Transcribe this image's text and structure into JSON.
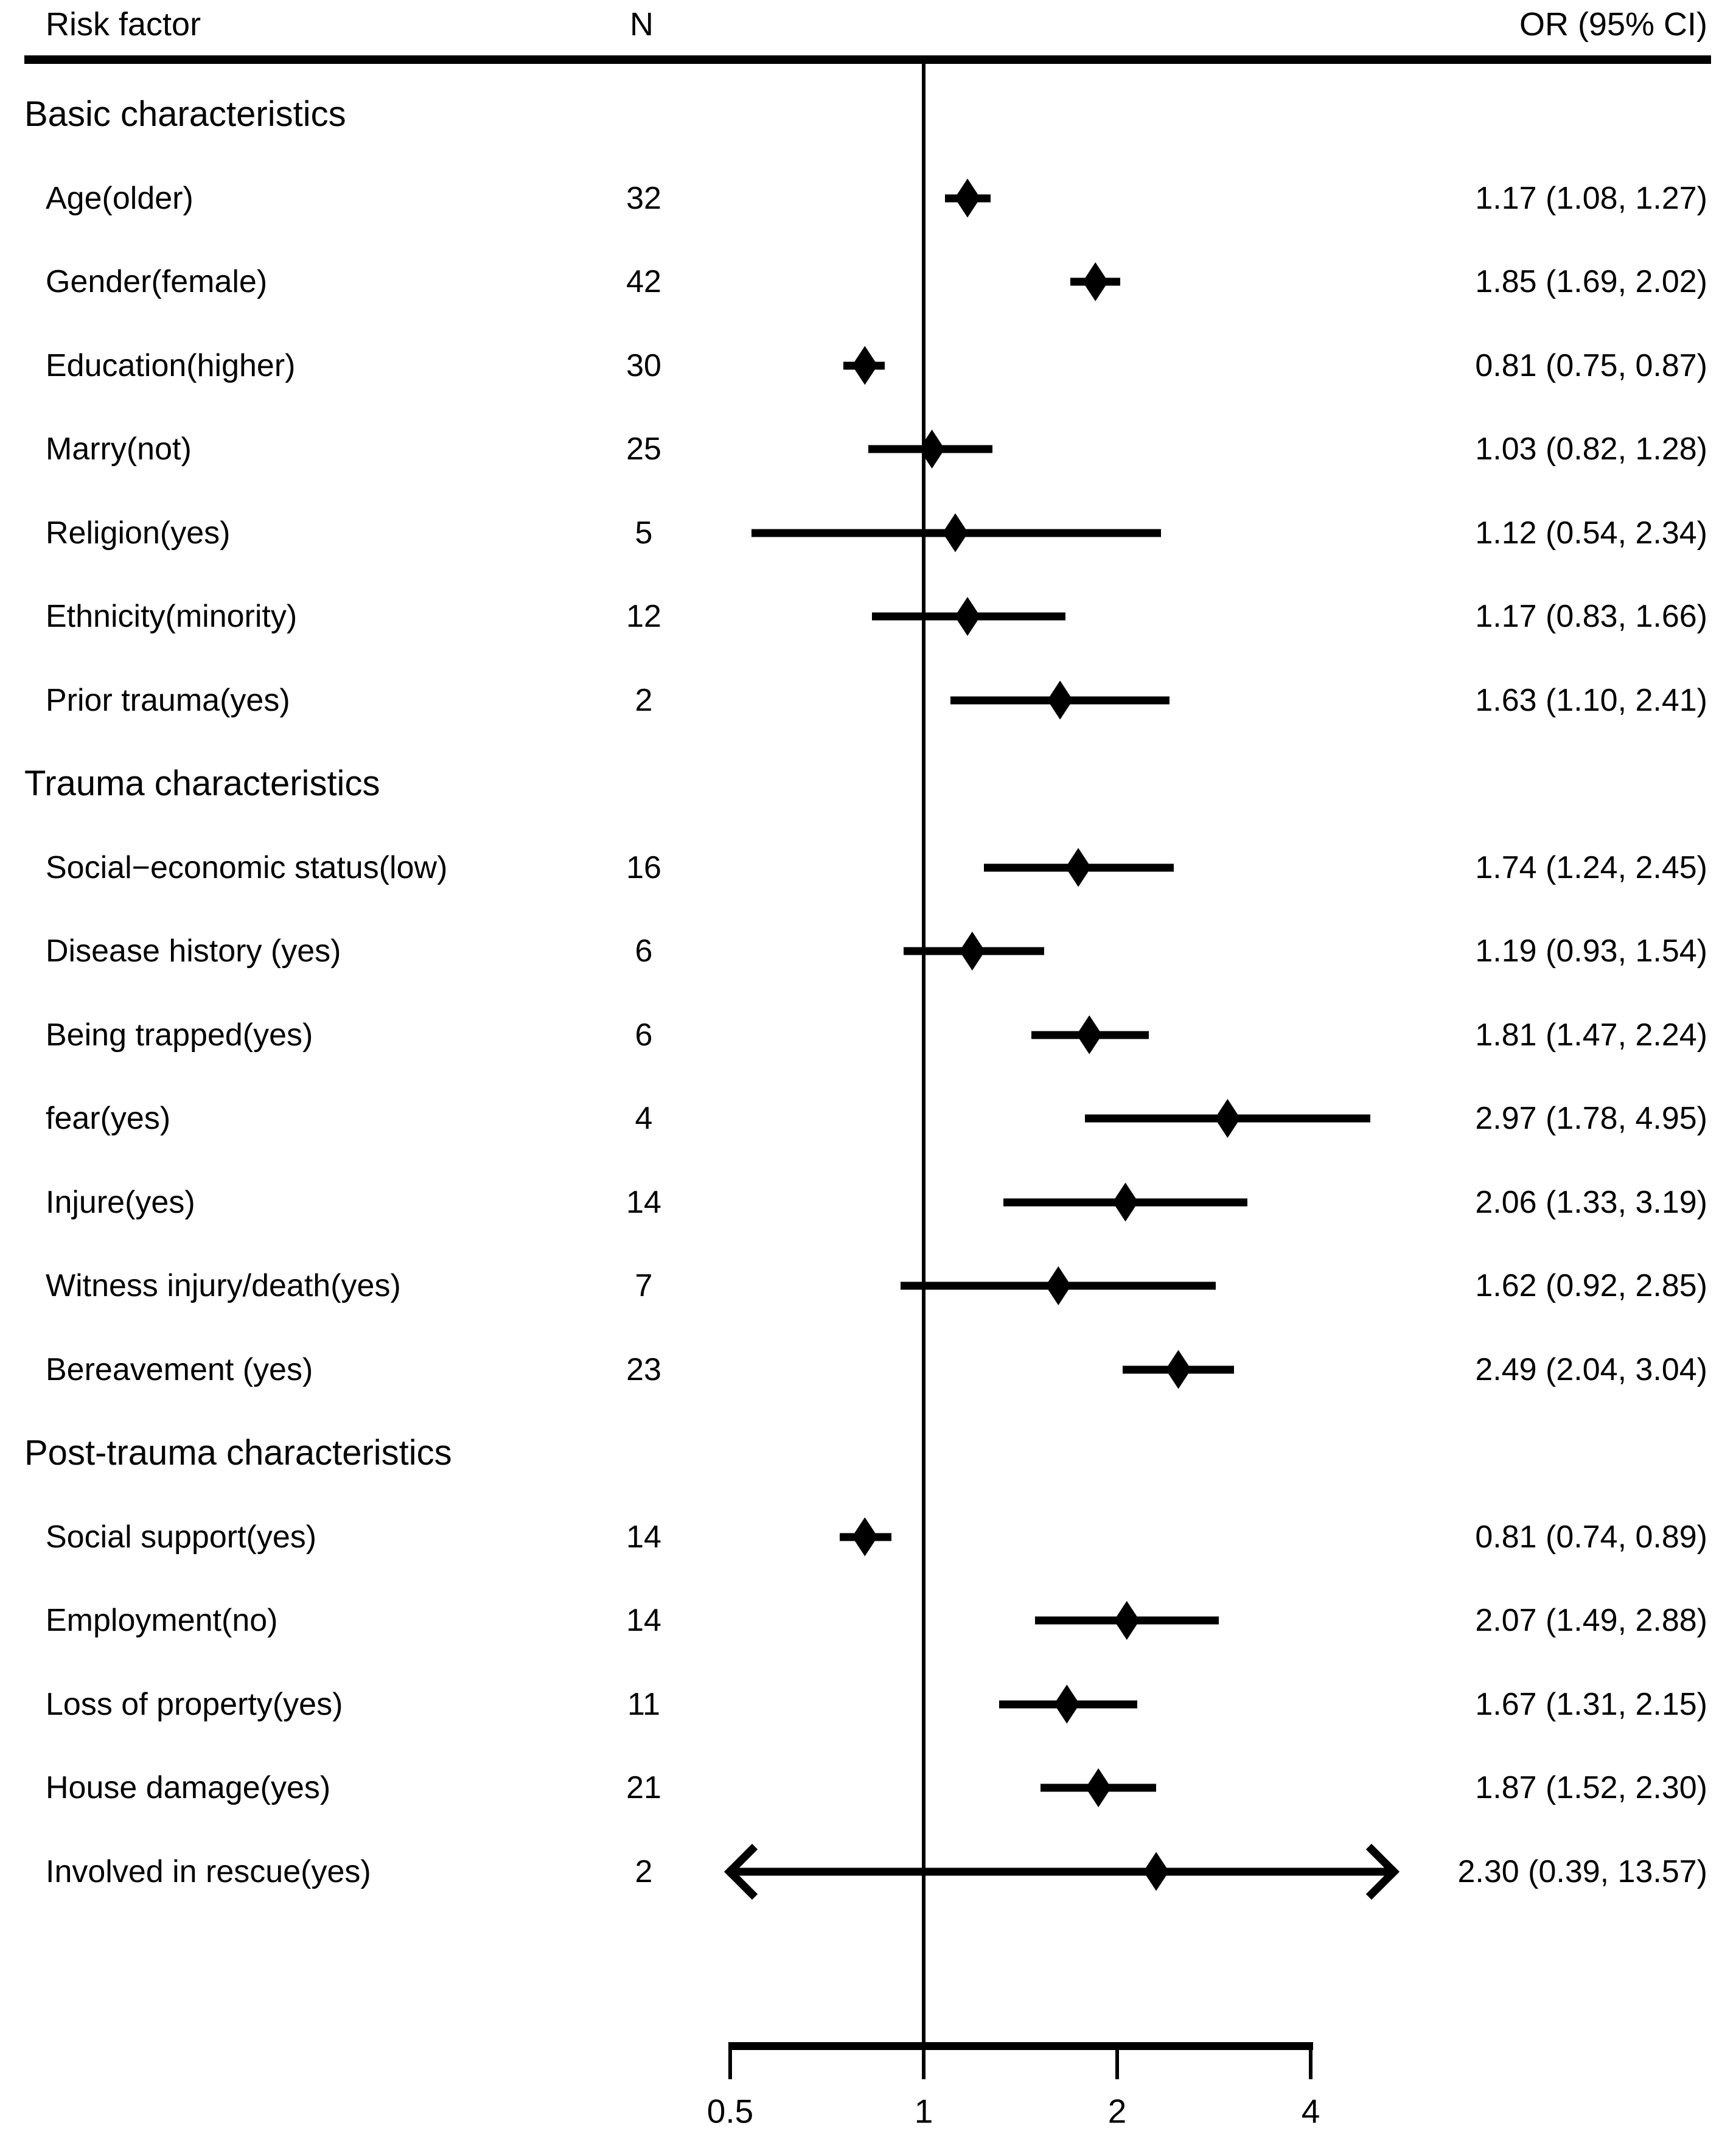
{
  "header": {
    "risk_factor": "Risk factor",
    "n": "N",
    "or_ci": "OR (95% CI)"
  },
  "axis": {
    "tick_labels": [
      "0.5",
      "1",
      "2",
      "4"
    ],
    "tick_values": [
      0.5,
      1,
      2,
      4
    ]
  },
  "chart_data": {
    "type": "scatter",
    "title": "",
    "xlabel": "",
    "x_scale": "log2",
    "x_ticks": [
      0.5,
      1,
      2,
      4
    ],
    "reference_line_x": 1,
    "marker": "diamond",
    "columns": [
      "Risk factor",
      "N",
      "OR (95% CI)"
    ],
    "sections": [
      {
        "title": "Basic characteristics",
        "rows": [
          {
            "label": "Age(older)",
            "n": "32",
            "or": 1.17,
            "ci_low": 1.08,
            "ci_high": 1.27,
            "or_text": "1.17 (1.08, 1.27)"
          },
          {
            "label": "Gender(female)",
            "n": "42",
            "or": 1.85,
            "ci_low": 1.69,
            "ci_high": 2.02,
            "or_text": "1.85 (1.69, 2.02)"
          },
          {
            "label": "Education(higher)",
            "n": "30",
            "or": 0.81,
            "ci_low": 0.75,
            "ci_high": 0.87,
            "or_text": "0.81 (0.75, 0.87)"
          },
          {
            "label": "Marry(not)",
            "n": "25",
            "or": 1.03,
            "ci_low": 0.82,
            "ci_high": 1.28,
            "or_text": "1.03 (0.82, 1.28)"
          },
          {
            "label": "Religion(yes)",
            "n": "5",
            "or": 1.12,
            "ci_low": 0.54,
            "ci_high": 2.34,
            "or_text": "1.12 (0.54, 2.34)"
          },
          {
            "label": "Ethnicity(minority)",
            "n": "12",
            "or": 1.17,
            "ci_low": 0.83,
            "ci_high": 1.66,
            "or_text": "1.17 (0.83, 1.66)"
          },
          {
            "label": "Prior trauma(yes)",
            "n": "2",
            "or": 1.63,
            "ci_low": 1.1,
            "ci_high": 2.41,
            "or_text": "1.63 (1.10, 2.41)"
          }
        ]
      },
      {
        "title": "Trauma characteristics",
        "rows": [
          {
            "label": "Social−economic status(low)",
            "n": "16",
            "or": 1.74,
            "ci_low": 1.24,
            "ci_high": 2.45,
            "or_text": "1.74 (1.24, 2.45)"
          },
          {
            "label": "Disease history (yes)",
            "n": "6",
            "or": 1.19,
            "ci_low": 0.93,
            "ci_high": 1.54,
            "or_text": "1.19 (0.93, 1.54)"
          },
          {
            "label": "Being trapped(yes)",
            "n": "6",
            "or": 1.81,
            "ci_low": 1.47,
            "ci_high": 2.24,
            "or_text": "1.81 (1.47, 2.24)"
          },
          {
            "label": "fear(yes)",
            "n": "4",
            "or": 2.97,
            "ci_low": 1.78,
            "ci_high": 4.95,
            "or_text": "2.97 (1.78, 4.95)"
          },
          {
            "label": "Injure(yes)",
            "n": "14",
            "or": 2.06,
            "ci_low": 1.33,
            "ci_high": 3.19,
            "or_text": "2.06 (1.33, 3.19)"
          },
          {
            "label": "Witness injury/death(yes)",
            "n": "7",
            "or": 1.62,
            "ci_low": 0.92,
            "ci_high": 2.85,
            "or_text": "1.62 (0.92, 2.85)"
          },
          {
            "label": "Bereavement (yes)",
            "n": "23",
            "or": 2.49,
            "ci_low": 2.04,
            "ci_high": 3.04,
            "or_text": "2.49 (2.04, 3.04)"
          }
        ]
      },
      {
        "title": "Post-trauma characteristics",
        "rows": [
          {
            "label": "Social support(yes)",
            "n": "14",
            "or": 0.81,
            "ci_low": 0.74,
            "ci_high": 0.89,
            "or_text": "0.81 (0.74, 0.89)"
          },
          {
            "label": "Employment(no)",
            "n": "14",
            "or": 2.07,
            "ci_low": 1.49,
            "ci_high": 2.88,
            "or_text": "2.07 (1.49, 2.88)"
          },
          {
            "label": "Loss of property(yes)",
            "n": "11",
            "or": 1.67,
            "ci_low": 1.31,
            "ci_high": 2.15,
            "or_text": "1.67 (1.31, 2.15)"
          },
          {
            "label": "House damage(yes)",
            "n": "21",
            "or": 1.87,
            "ci_low": 1.52,
            "ci_high": 2.3,
            "or_text": "1.87 (1.52, 2.30)"
          },
          {
            "label": "Involved in rescue(yes)",
            "n": "2",
            "or": 2.3,
            "ci_low": 0.39,
            "ci_high": 13.57,
            "or_text": "2.30 (0.39, 13.57)",
            "clip_left": true,
            "clip_right": true
          }
        ]
      }
    ]
  }
}
